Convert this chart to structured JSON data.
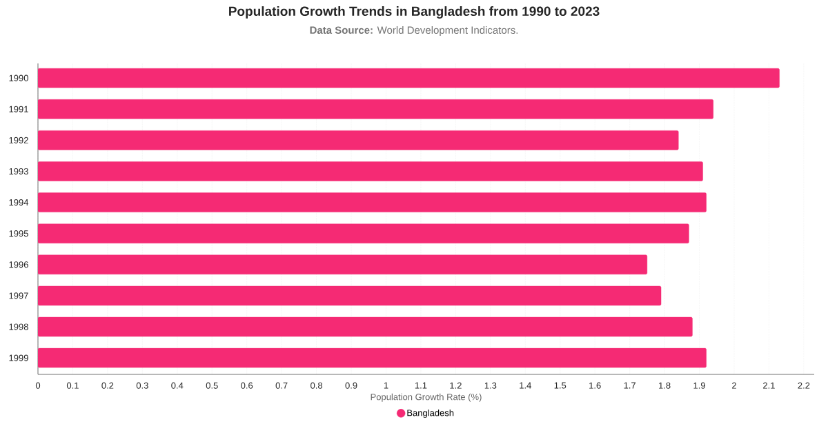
{
  "chart_data": {
    "type": "bar",
    "orientation": "horizontal",
    "title": "Population Growth Trends in Bangladesh from 1990 to 2023",
    "subtitle": "**Data Source:** World Development Indicators.",
    "xlabel": "Population Growth Rate (%)",
    "categories": [
      "1990",
      "1991",
      "1992",
      "1993",
      "1994",
      "1995",
      "1996",
      "1997",
      "1998",
      "1999"
    ],
    "series": [
      {
        "name": "Bangladesh",
        "color": "#f52a74",
        "values": [
          2.13,
          1.94,
          1.84,
          1.91,
          1.92,
          1.87,
          1.75,
          1.79,
          1.88,
          1.92
        ]
      }
    ],
    "xlim": [
      0,
      2.23
    ],
    "xticks": [
      0,
      0.1,
      0.2,
      0.3,
      0.4,
      0.5,
      0.6,
      0.7,
      0.8,
      0.9,
      1,
      1.1,
      1.2,
      1.3,
      1.4,
      1.5,
      1.6,
      1.7,
      1.8,
      1.9,
      2,
      2.1,
      2.2
    ],
    "grid": "x",
    "legend": "bottom"
  }
}
